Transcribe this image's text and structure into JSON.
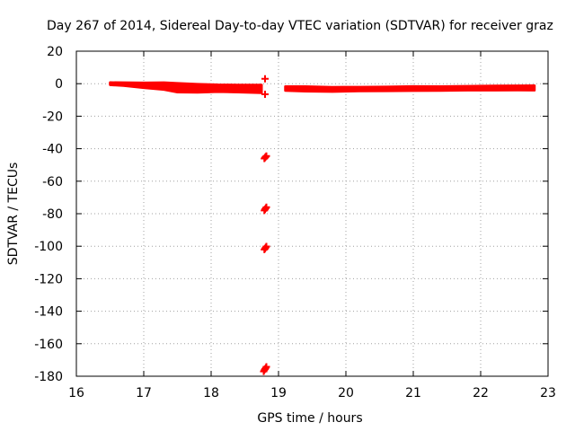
{
  "chart_data": {
    "type": "scatter",
    "title": "Day 267 of 2014, Sidereal Day-to-day VTEC variation (SDTVAR) for receiver graz",
    "xlabel": "GPS time / hours",
    "ylabel": "SDTVAR / TECUs",
    "xlim": [
      16,
      23
    ],
    "ylim": [
      -180,
      20
    ],
    "xticks": [
      16,
      17,
      18,
      19,
      20,
      21,
      22,
      23
    ],
    "yticks": [
      20,
      0,
      -20,
      -40,
      -60,
      -80,
      -100,
      -120,
      -140,
      -160,
      -180
    ],
    "grid": true,
    "marker": "+",
    "color": "#ff0000",
    "band_segments": [
      {
        "x": [
          16.5,
          16.7,
          17.0,
          17.3,
          17.5,
          17.8,
          18.1,
          18.4,
          18.75
        ],
        "center": [
          0.0,
          -0.3,
          -1.0,
          -1.5,
          -2.5,
          -2.8,
          -2.8,
          -3.0,
          -3.2
        ],
        "half_width": [
          0.8,
          1.0,
          1.6,
          2.2,
          2.8,
          2.6,
          2.2,
          2.3,
          2.5
        ]
      },
      {
        "x": [
          19.1,
          19.4,
          19.8,
          20.2,
          20.6,
          21.0,
          21.4,
          21.8,
          22.2,
          22.55,
          22.8
        ],
        "center": [
          -3.0,
          -3.2,
          -3.5,
          -3.3,
          -3.2,
          -3.0,
          -3.0,
          -2.8,
          -2.7,
          -2.6,
          -2.6
        ],
        "half_width": [
          1.3,
          1.5,
          1.4,
          1.3,
          1.3,
          1.4,
          1.3,
          1.3,
          1.4,
          1.4,
          1.5
        ]
      }
    ],
    "points": [
      {
        "x": 18.8,
        "y": 3.0
      },
      {
        "x": 18.8,
        "y": -6.5
      },
      {
        "x": 18.79,
        "y": -46.0
      },
      {
        "x": 18.8,
        "y": -45.5
      },
      {
        "x": 18.81,
        "y": -45.0
      },
      {
        "x": 18.82,
        "y": -44.5
      },
      {
        "x": 18.79,
        "y": -78.0
      },
      {
        "x": 18.8,
        "y": -77.3
      },
      {
        "x": 18.81,
        "y": -76.6
      },
      {
        "x": 18.82,
        "y": -76.0
      },
      {
        "x": 18.79,
        "y": -102.0
      },
      {
        "x": 18.8,
        "y": -101.4
      },
      {
        "x": 18.81,
        "y": -100.8
      },
      {
        "x": 18.82,
        "y": -100.2
      },
      {
        "x": 18.78,
        "y": -177.0
      },
      {
        "x": 18.79,
        "y": -176.3
      },
      {
        "x": 18.8,
        "y": -175.6
      },
      {
        "x": 18.81,
        "y": -174.9
      },
      {
        "x": 18.82,
        "y": -174.2
      }
    ]
  }
}
